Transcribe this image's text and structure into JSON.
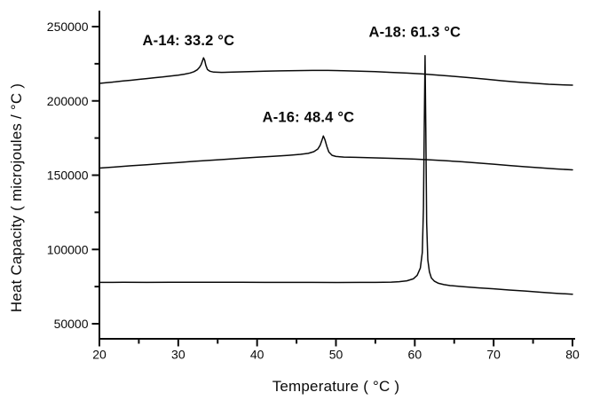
{
  "figure": {
    "background_color": "#ffffff",
    "ink_color": "#0a0a0a"
  },
  "chart_data": {
    "type": "line",
    "title": "",
    "xlabel": "Temperature ( °C )",
    "ylabel": "Heat Capacity ( microjoules / °C )",
    "xlim": [
      20,
      80
    ],
    "ylim": [
      40000,
      261000
    ],
    "grid": false,
    "legend": "none",
    "x_ticks_major": [
      20,
      30,
      40,
      50,
      60,
      70,
      80
    ],
    "x_ticks_minor": [
      25,
      35,
      45,
      55,
      65,
      75
    ],
    "x_tick_labels": [
      "20",
      "30",
      "40",
      "50",
      "60",
      "70",
      "80"
    ],
    "y_ticks_major": [
      50000,
      100000,
      150000,
      200000,
      250000
    ],
    "y_ticks_minor": [
      75000,
      125000,
      175000,
      225000
    ],
    "y_tick_labels": [
      "50000",
      "100000",
      "150000",
      "200000",
      "250000"
    ],
    "annotations": [
      {
        "id": "a-14",
        "text": "A-14: 33.2 °C",
        "anchor_x": 31.3,
        "anchor_y": 240700,
        "peak_temperature_c": 33.2
      },
      {
        "id": "a-16",
        "text": "A-16: 48.4 °C",
        "anchor_x": 46.5,
        "anchor_y": 189100,
        "peak_temperature_c": 48.4
      },
      {
        "id": "a-18",
        "text": "A-18: 61.3 °C",
        "anchor_x": 60.0,
        "anchor_y": 246400,
        "peak_temperature_c": 61.3
      }
    ],
    "series": [
      {
        "name": "A-14",
        "peak_temperature_c": 33.2,
        "points": [
          [
            20,
            211800
          ],
          [
            21,
            212300
          ],
          [
            22,
            212800
          ],
          [
            23,
            213400
          ],
          [
            24,
            213900
          ],
          [
            25,
            214500
          ],
          [
            26,
            215000
          ],
          [
            27,
            215600
          ],
          [
            28,
            216100
          ],
          [
            29,
            216700
          ],
          [
            30,
            217300
          ],
          [
            30.8,
            218000
          ],
          [
            31.5,
            218800
          ],
          [
            32,
            219700
          ],
          [
            32.4,
            220900
          ],
          [
            32.7,
            222600
          ],
          [
            32.9,
            224400
          ],
          [
            33.05,
            226600
          ],
          [
            33.2,
            229000
          ],
          [
            33.35,
            227400
          ],
          [
            33.5,
            223900
          ],
          [
            33.7,
            221100
          ],
          [
            34,
            220000
          ],
          [
            34.5,
            219400
          ],
          [
            35.5,
            219200
          ],
          [
            37,
            219400
          ],
          [
            39,
            219700
          ],
          [
            41,
            220000
          ],
          [
            43,
            220200
          ],
          [
            45,
            220400
          ],
          [
            47,
            220500
          ],
          [
            49,
            220500
          ],
          [
            51,
            220300
          ],
          [
            53,
            220000
          ],
          [
            55,
            219700
          ],
          [
            57,
            219200
          ],
          [
            59,
            218700
          ],
          [
            61,
            218100
          ],
          [
            63,
            217300
          ],
          [
            65,
            216500
          ],
          [
            67,
            215600
          ],
          [
            69,
            214600
          ],
          [
            71,
            213600
          ],
          [
            73,
            212700
          ],
          [
            75,
            211900
          ],
          [
            77,
            211200
          ],
          [
            79,
            210800
          ],
          [
            80,
            210600
          ]
        ]
      },
      {
        "name": "A-16",
        "peak_temperature_c": 48.4,
        "points": [
          [
            20,
            154800
          ],
          [
            22,
            155500
          ],
          [
            24,
            156300
          ],
          [
            26,
            157000
          ],
          [
            28,
            157800
          ],
          [
            30,
            158500
          ],
          [
            32,
            159300
          ],
          [
            34,
            160000
          ],
          [
            36,
            160700
          ],
          [
            38,
            161400
          ],
          [
            40,
            162100
          ],
          [
            42,
            162700
          ],
          [
            44,
            163400
          ],
          [
            45.5,
            164000
          ],
          [
            46.5,
            164700
          ],
          [
            47.2,
            165800
          ],
          [
            47.7,
            167600
          ],
          [
            48,
            170100
          ],
          [
            48.2,
            173100
          ],
          [
            48.4,
            176400
          ],
          [
            48.6,
            173900
          ],
          [
            48.85,
            169300
          ],
          [
            49.1,
            165600
          ],
          [
            49.5,
            163400
          ],
          [
            50,
            162600
          ],
          [
            51,
            162200
          ],
          [
            52.5,
            162000
          ],
          [
            54,
            161800
          ],
          [
            56,
            161500
          ],
          [
            58,
            161200
          ],
          [
            60,
            160800
          ],
          [
            62,
            160300
          ],
          [
            64,
            159700
          ],
          [
            66,
            159000
          ],
          [
            68,
            158200
          ],
          [
            70,
            157400
          ],
          [
            72,
            156500
          ],
          [
            74,
            155700
          ],
          [
            76,
            154900
          ],
          [
            78,
            154200
          ],
          [
            80,
            153600
          ]
        ]
      },
      {
        "name": "A-18",
        "peak_temperature_c": 61.3,
        "points": [
          [
            20,
            77800
          ],
          [
            23,
            77900
          ],
          [
            26,
            77850
          ],
          [
            29,
            77900
          ],
          [
            32,
            77900
          ],
          [
            35,
            77950
          ],
          [
            38,
            77900
          ],
          [
            41,
            77850
          ],
          [
            44,
            77800
          ],
          [
            47,
            77800
          ],
          [
            50,
            77750
          ],
          [
            53,
            77800
          ],
          [
            55,
            77850
          ],
          [
            57,
            78000
          ],
          [
            58,
            78300
          ],
          [
            59,
            78900
          ],
          [
            59.8,
            80200
          ],
          [
            60.3,
            82600
          ],
          [
            60.7,
            87500
          ],
          [
            60.95,
            98000
          ],
          [
            61.1,
            128000
          ],
          [
            61.2,
            182000
          ],
          [
            61.3,
            230500
          ],
          [
            61.4,
            178000
          ],
          [
            61.5,
            118000
          ],
          [
            61.65,
            93000
          ],
          [
            61.85,
            85000
          ],
          [
            62.1,
            80800
          ],
          [
            62.5,
            78600
          ],
          [
            63,
            77200
          ],
          [
            63.7,
            76300
          ],
          [
            64.5,
            75700
          ],
          [
            66,
            75000
          ],
          [
            68,
            74200
          ],
          [
            70,
            73500
          ],
          [
            72,
            72700
          ],
          [
            74,
            72000
          ],
          [
            76,
            71200
          ],
          [
            78,
            70500
          ],
          [
            80,
            69900
          ]
        ]
      }
    ]
  }
}
